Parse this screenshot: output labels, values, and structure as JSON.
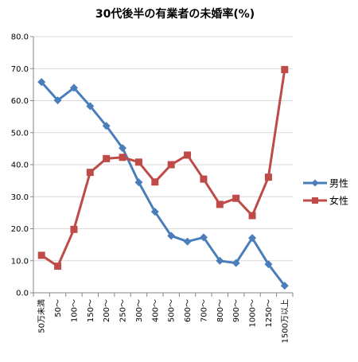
{
  "chart_data": {
    "type": "line",
    "title": "30代後半の有業者の未婚率(%)",
    "xlabel": "",
    "ylabel": "",
    "categories": [
      "50万未満",
      "50～",
      "100～",
      "150～",
      "200～",
      "250～",
      "300～",
      "400～",
      "500～",
      "600～",
      "700～",
      "800～",
      "900～",
      "1000～",
      "1250～",
      "1500万以上"
    ],
    "ylim": [
      0,
      80
    ],
    "yticks": [
      "0.0",
      "10.0",
      "20.0",
      "30.0",
      "40.0",
      "50.0",
      "60.0",
      "70.0",
      "80.0"
    ],
    "grid": true,
    "legend_position": "right",
    "series": [
      {
        "name": "男性",
        "color": "#4a7ebb",
        "marker": "diamond",
        "values": [
          65.8,
          60.1,
          64.0,
          58.3,
          52.1,
          45.2,
          34.5,
          25.3,
          17.8,
          16.0,
          17.3,
          10.0,
          9.3,
          17.1,
          8.9,
          2.2
        ]
      },
      {
        "name": "女性",
        "color": "#be4b48",
        "marker": "square",
        "values": [
          11.7,
          8.3,
          19.8,
          37.6,
          41.9,
          42.3,
          40.8,
          34.6,
          40.0,
          43.0,
          35.5,
          27.6,
          29.5,
          24.1,
          36.1,
          69.7
        ]
      }
    ]
  }
}
